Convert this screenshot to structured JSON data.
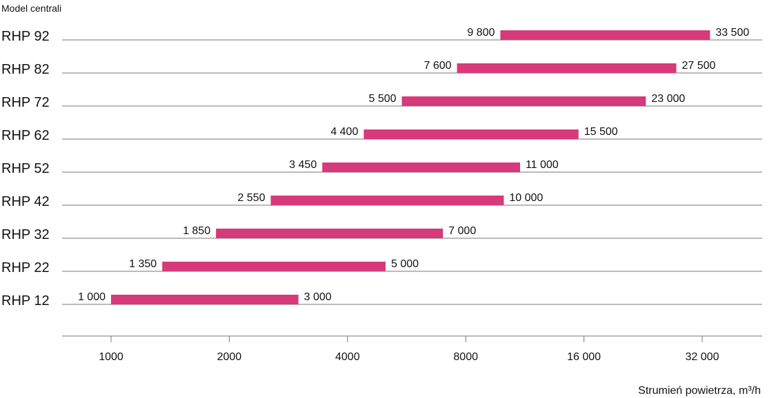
{
  "chart_data": {
    "type": "range-bar",
    "y_axis_title": "Model centrali",
    "x_axis_title": "Strumień powietrza, m³/h",
    "x_scale": "log2",
    "x_ticks": [
      {
        "value": 1000,
        "label": "1000"
      },
      {
        "value": 2000,
        "label": "2000"
      },
      {
        "value": 4000,
        "label": "4000"
      },
      {
        "value": 8000,
        "label": "8000"
      },
      {
        "value": 16000,
        "label": "16 000"
      },
      {
        "value": 32000,
        "label": "32 000"
      }
    ],
    "bar_color": "#d63a7a",
    "rows": [
      {
        "model": "RHP 92",
        "min": 9800,
        "max": 33500,
        "min_label": "9 800",
        "max_label": "33 500"
      },
      {
        "model": "RHP 82",
        "min": 7600,
        "max": 27500,
        "min_label": "7 600",
        "max_label": "27 500"
      },
      {
        "model": "RHP 72",
        "min": 5500,
        "max": 23000,
        "min_label": "5 500",
        "max_label": "23 000"
      },
      {
        "model": "RHP 62",
        "min": 4400,
        "max": 15500,
        "min_label": "4 400",
        "max_label": "15 500"
      },
      {
        "model": "RHP 52",
        "min": 3450,
        "max": 11000,
        "min_label": "3 450",
        "max_label": "11 000"
      },
      {
        "model": "RHP 42",
        "min": 2550,
        "max": 10000,
        "min_label": "2 550",
        "max_label": "10 000"
      },
      {
        "model": "RHP 32",
        "min": 1850,
        "max": 7000,
        "min_label": "1 850",
        "max_label": "7 000"
      },
      {
        "model": "RHP 22",
        "min": 1350,
        "max": 5000,
        "min_label": "1 350",
        "max_label": "5 000"
      },
      {
        "model": "RHP 12",
        "min": 1000,
        "max": 3000,
        "min_label": "1 000",
        "max_label": "3 000"
      }
    ]
  }
}
